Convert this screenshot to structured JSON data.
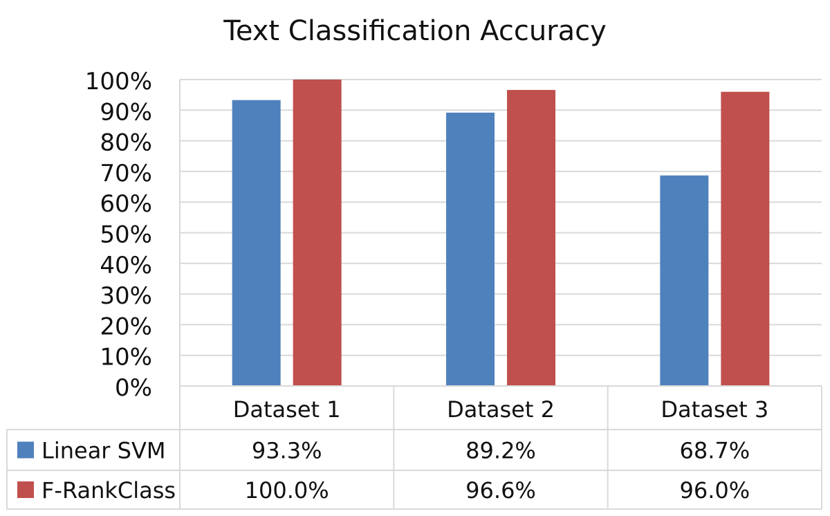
{
  "chart_data": {
    "type": "bar",
    "title": "Text Classification Accuracy",
    "xlabel": "",
    "ylabel": "",
    "categories": [
      "Dataset 1",
      "Dataset 2",
      "Dataset 3"
    ],
    "series": [
      {
        "name": "Linear SVM",
        "values": [
          93.3,
          89.2,
          68.7
        ],
        "labels": [
          "93.3%",
          "89.2%",
          "68.7%"
        ],
        "color": "#4f81bd"
      },
      {
        "name": "F-RankClass",
        "values": [
          100.0,
          96.6,
          96.0
        ],
        "labels": [
          "100.0%",
          "96.6%",
          "96.0%"
        ],
        "color": "#c0504d"
      }
    ],
    "ylim": [
      0,
      100
    ],
    "yticks": [
      0,
      10,
      20,
      30,
      40,
      50,
      60,
      70,
      80,
      90,
      100
    ],
    "ytick_labels": [
      "0%",
      "10%",
      "20%",
      "30%",
      "40%",
      "50%",
      "60%",
      "70%",
      "80%",
      "90%",
      "100%"
    ],
    "grid": true,
    "legend": "data-table",
    "gridline_color": "#d9d9d9"
  }
}
